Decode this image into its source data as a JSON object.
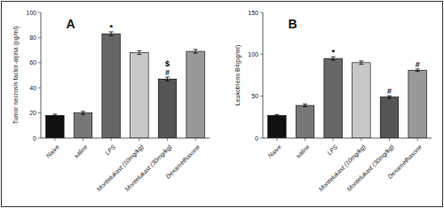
{
  "chart_data": [
    {
      "type": "bar",
      "title": "A",
      "ylabel": "Tumor necrosis factor-alpha (pg/ml)",
      "categories": [
        "Naive",
        "saline",
        "LPS",
        "Montelukast (10mg/kg)",
        "Montelukast (30mg/kg)",
        "Dexamethasone"
      ],
      "values": [
        18,
        20,
        83,
        68,
        47,
        69
      ],
      "errors": [
        1.0,
        1.2,
        1.5,
        1.5,
        1.5,
        1.5
      ],
      "colors": [
        "#111111",
        "#777777",
        "#666666",
        "#c8c8c8",
        "#555555",
        "#999999"
      ],
      "ylim": [
        0,
        100
      ],
      "yticks": [
        0,
        20,
        40,
        60,
        80,
        100
      ],
      "grid": false,
      "annotations": [
        {
          "x": 2,
          "y": 86,
          "text": "*"
        },
        {
          "x": 4,
          "y": 50,
          "text": "#"
        },
        {
          "x": 4,
          "y": 57,
          "text": "$"
        }
      ]
    },
    {
      "type": "bar",
      "title": "B",
      "ylabel": "Leukotriens B4(pg/ml)",
      "categories": [
        "Naive",
        "saline",
        "LPS",
        "Montelukast (10mg/kg)",
        "Montelukast (30mg/kg)",
        "Dexamethasone"
      ],
      "values": [
        27,
        39,
        95,
        90,
        49,
        81
      ],
      "errors": [
        1.2,
        1.5,
        2.0,
        2.0,
        1.5,
        1.5
      ],
      "colors": [
        "#111111",
        "#777777",
        "#666666",
        "#c8c8c8",
        "#555555",
        "#999999"
      ],
      "ylim": [
        0,
        150
      ],
      "yticks": [
        0,
        50,
        100,
        150
      ],
      "grid": false,
      "annotations": [
        {
          "x": 2,
          "y": 99,
          "text": "*"
        },
        {
          "x": 4,
          "y": 53,
          "text": "#"
        },
        {
          "x": 5,
          "y": 85,
          "text": "#"
        }
      ]
    }
  ]
}
